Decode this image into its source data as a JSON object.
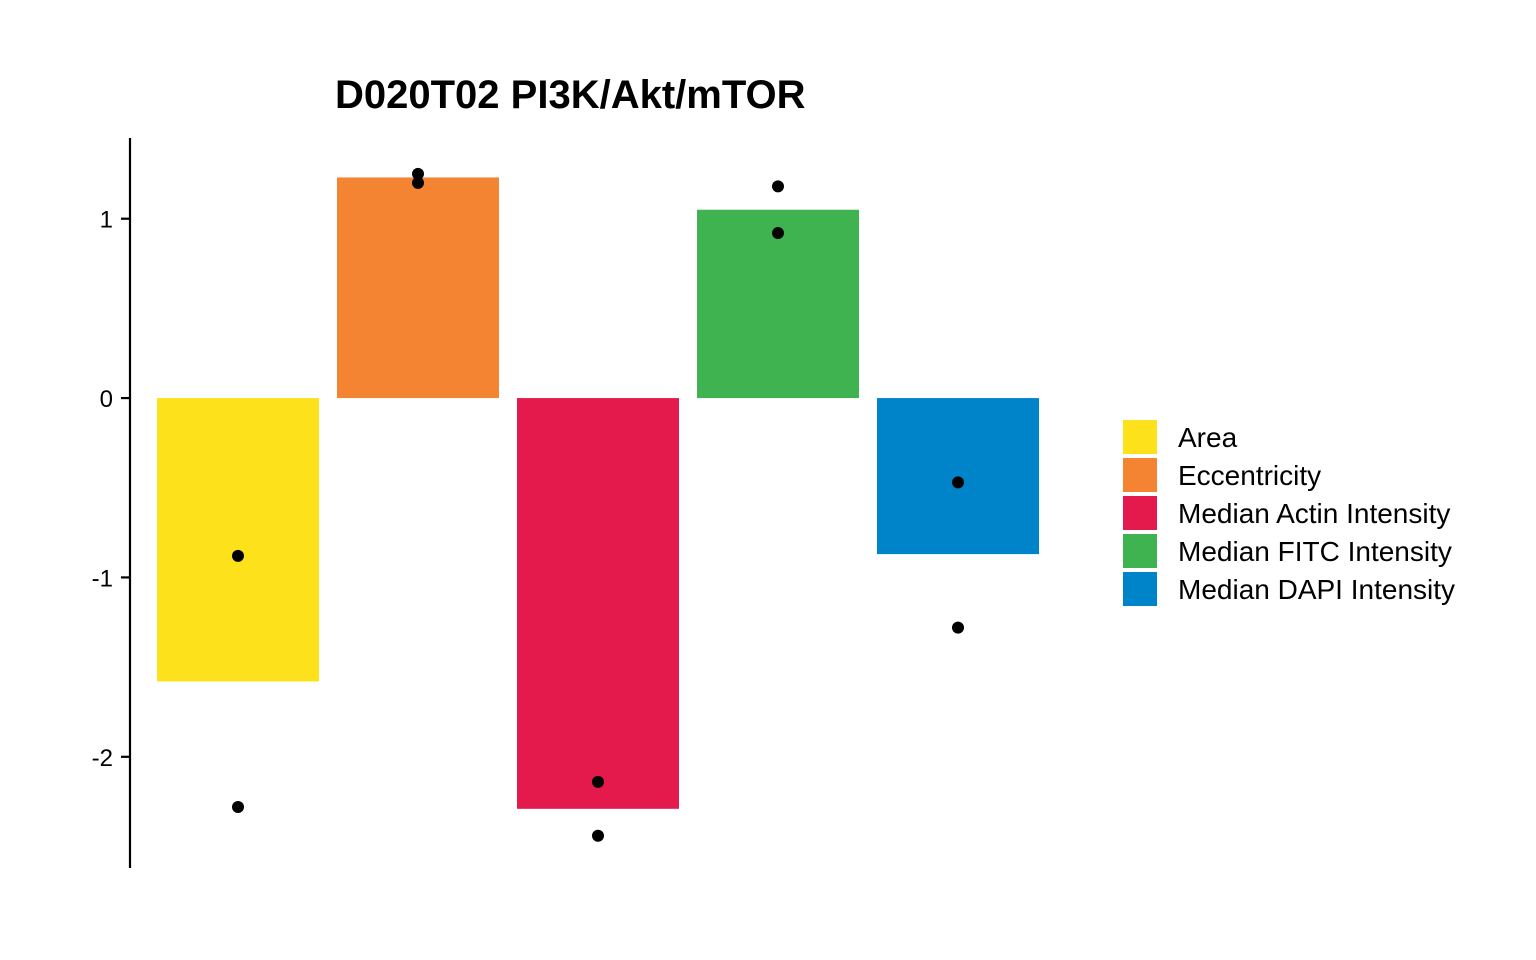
{
  "chart_data": {
    "type": "bar",
    "title": "D020T02 PI3K/Akt/mTOR",
    "xlabel": "",
    "ylabel": "",
    "categories": [
      "Area",
      "Eccentricity",
      "Median Actin Intensity",
      "Median FITC Intensity",
      "Median DAPI Intensity"
    ],
    "values": [
      -1.58,
      1.23,
      -2.29,
      1.05,
      -0.87
    ],
    "points": [
      [
        -0.88,
        -2.28
      ],
      [
        1.25,
        1.2
      ],
      [
        -2.14,
        -2.44
      ],
      [
        1.18,
        0.92
      ],
      [
        -0.47,
        -1.28
      ]
    ],
    "colors": [
      "#FDE11A",
      "#F48432",
      "#E31A4B",
      "#3EB34F",
      "#0084C9"
    ],
    "point_color": "#000000",
    "yticks": [
      -2,
      -1,
      0,
      1
    ],
    "ylim": [
      -2.62,
      1.45
    ],
    "grid": false,
    "legend": {
      "position": "right",
      "entries": [
        "Area",
        "Eccentricity",
        "Median Actin Intensity",
        "Median FITC Intensity",
        "Median DAPI Intensity"
      ]
    }
  }
}
